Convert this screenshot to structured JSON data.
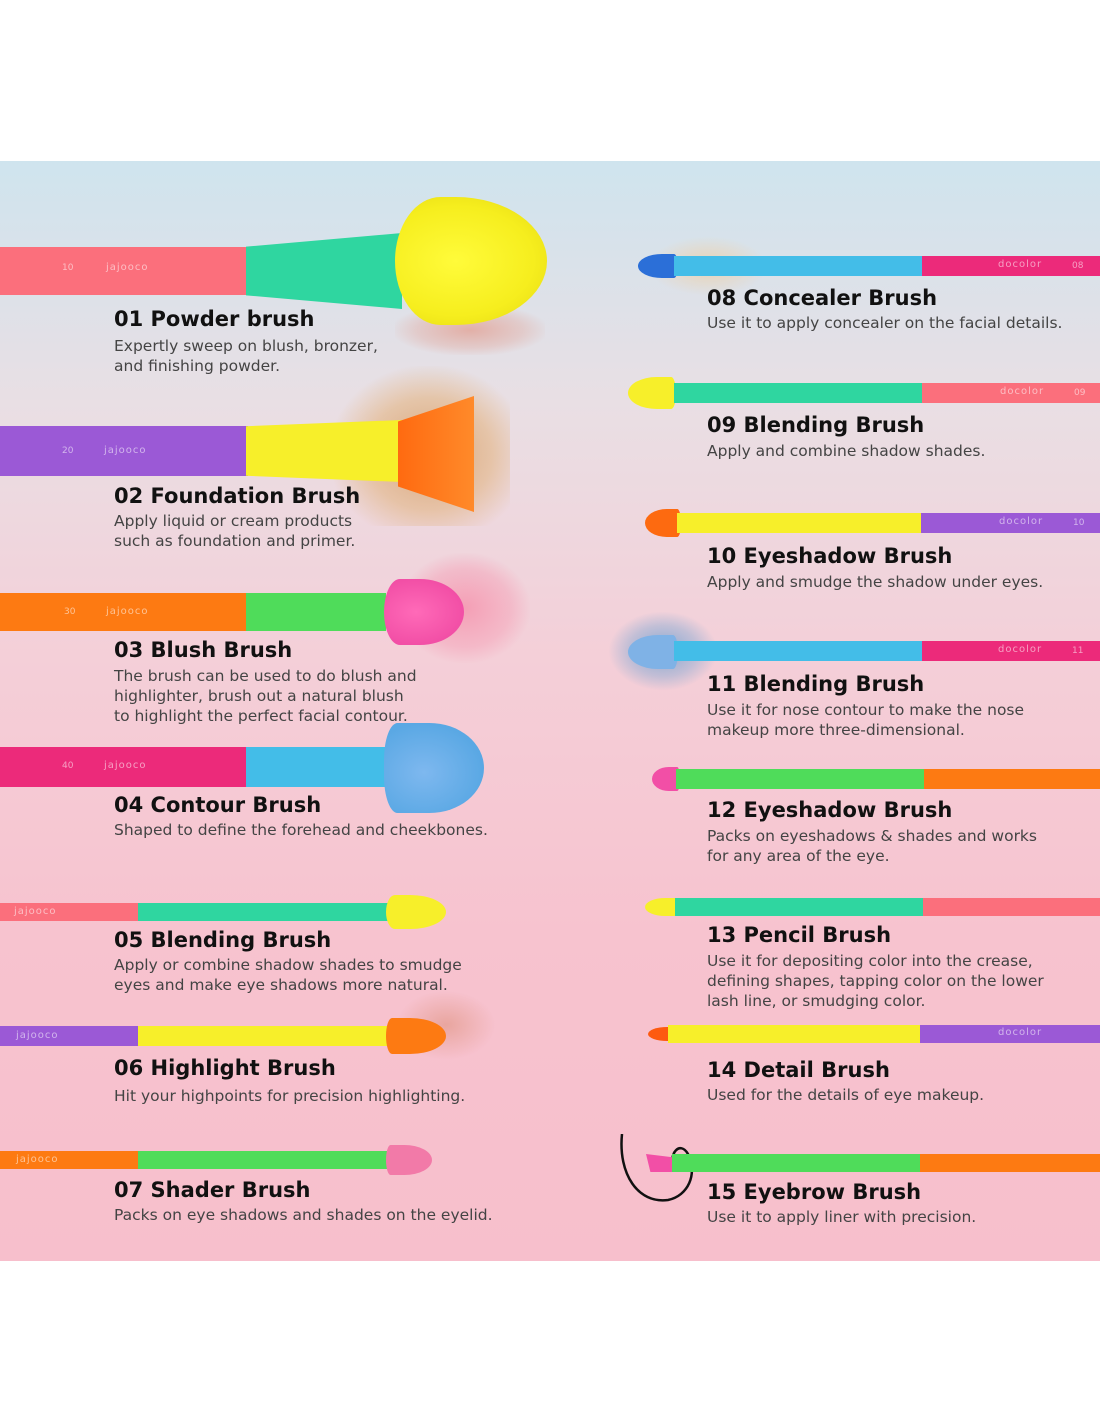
{
  "brand_left": "jajooco",
  "brand_right": "docolor",
  "brushes": [
    {
      "id": "01",
      "title": "01 Powder brush",
      "lines": [
        "Expertly sweep on blush, bronzer,",
        "and finishing powder."
      ]
    },
    {
      "id": "02",
      "title": "02 Foundation Brush",
      "lines": [
        "Apply liquid or cream products",
        "such as foundation and primer."
      ]
    },
    {
      "id": "03",
      "title": "03 Blush Brush",
      "lines": [
        "The brush can be used to do blush and",
        "highlighter, brush out a natural blush",
        "to highlight the perfect facial contour."
      ]
    },
    {
      "id": "04",
      "title": "04 Contour Brush",
      "lines": [
        "Shaped to define the forehead and cheekbones."
      ]
    },
    {
      "id": "05",
      "title": "05 Blending Brush",
      "lines": [
        "Apply or combine shadow shades to smudge",
        "eyes and make eye shadows more natural."
      ]
    },
    {
      "id": "06",
      "title": "06 Highlight Brush",
      "lines": [
        "Hit your highpoints for precision highlighting."
      ]
    },
    {
      "id": "07",
      "title": "07 Shader Brush",
      "lines": [
        "Packs on eye shadows and shades on the eyelid."
      ]
    },
    {
      "id": "08",
      "title": "08 Concealer Brush",
      "lines": [
        "Use it to apply concealer on the facial details."
      ]
    },
    {
      "id": "09",
      "title": "09 Blending Brush",
      "lines": [
        "Apply and combine shadow shades."
      ]
    },
    {
      "id": "10",
      "title": "10 Eyeshadow Brush",
      "lines": [
        "Apply and smudge the shadow under eyes."
      ]
    },
    {
      "id": "11",
      "title": "11 Blending Brush",
      "lines": [
        "Use it for nose contour to make the nose",
        "makeup more three-dimensional."
      ]
    },
    {
      "id": "12",
      "title": "12 Eyeshadow Brush",
      "lines": [
        "Packs on eyeshadows & shades and works",
        "for any area of the eye."
      ]
    },
    {
      "id": "13",
      "title": "13 Pencil Brush",
      "lines": [
        "Use it for depositing color into the crease,",
        "defining shapes, tapping color on the lower",
        "lash line, or smudging color."
      ]
    },
    {
      "id": "14",
      "title": "14 Detail Brush",
      "lines": [
        "Used for the details of eye makeup."
      ]
    },
    {
      "id": "15",
      "title": "15 Eyebrow Brush",
      "lines": [
        "Use it to apply liner with precision."
      ]
    }
  ],
  "handle_numbers": [
    "10",
    "20",
    "30",
    "40",
    "08",
    "09",
    "10",
    "11"
  ],
  "colors": {
    "coral": "#fb6f7c",
    "mint": "#2fd6a0",
    "yellow": "#f7ef2a",
    "purple": "#9b59d6",
    "orange": "#fd7a12",
    "green": "#4fdc5a",
    "magenta": "#ec2a7a",
    "sky": "#43bde8",
    "pink": "#f24fa6",
    "blue": "#5aa8e4"
  }
}
